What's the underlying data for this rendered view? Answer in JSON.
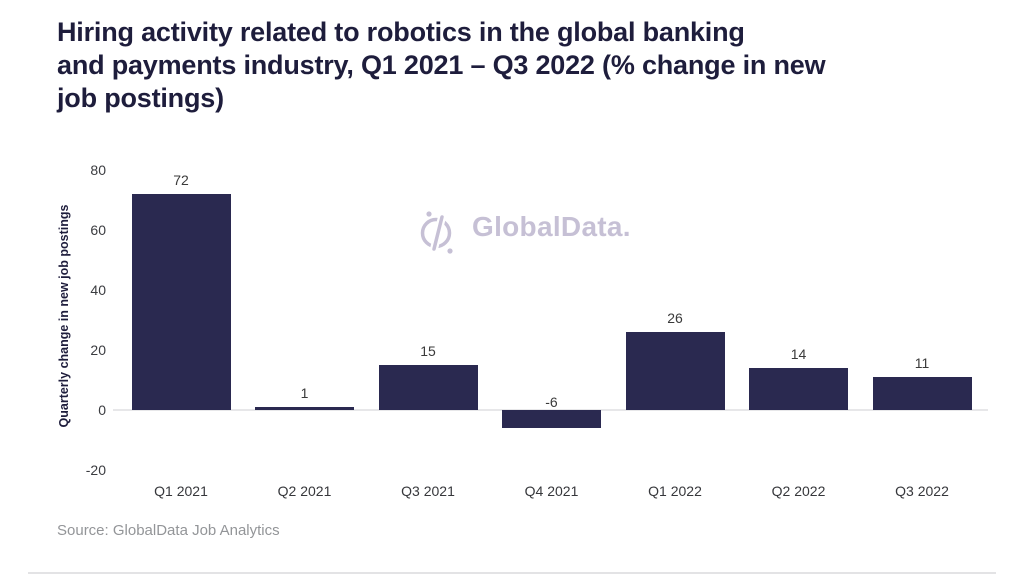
{
  "title_lines": [
    "Hiring activity related to robotics in the global banking",
    "and payments industry, Q1 2021 – Q3 2022 (% change in new",
    "job postings)"
  ],
  "source_note": "Source: GlobalData Job Analytics",
  "watermark": {
    "brand": "GlobalData.",
    "color": "#c6c0d5"
  },
  "colors": {
    "bar": "#2a2950",
    "title_text": "#1e1d3c",
    "axis_text": "#3b3c40",
    "value_label_text": "#3a3a3a",
    "source_text": "#939598",
    "zero_line": "#e7e7e9",
    "divider": "#e3e3e5"
  },
  "chart_data": {
    "type": "bar",
    "title": "Hiring activity related to robotics in the global banking and payments industry, Q1 2021 – Q3 2022 (% change in new job postings)",
    "categories": [
      "Q1 2021",
      "Q2 2021",
      "Q3 2021",
      "Q4 2021",
      "Q1 2022",
      "Q2 2022",
      "Q3 2022"
    ],
    "values": [
      72,
      1,
      15,
      -6,
      26,
      14,
      11
    ],
    "xlabel": "",
    "ylabel": "Quarterly change in new job postings",
    "yticks": [
      80,
      60,
      40,
      20,
      0,
      -20
    ],
    "ylim": [
      -20,
      80
    ],
    "grid": false,
    "legend": false,
    "value_labels": true,
    "bar_color": "#2a2950"
  }
}
